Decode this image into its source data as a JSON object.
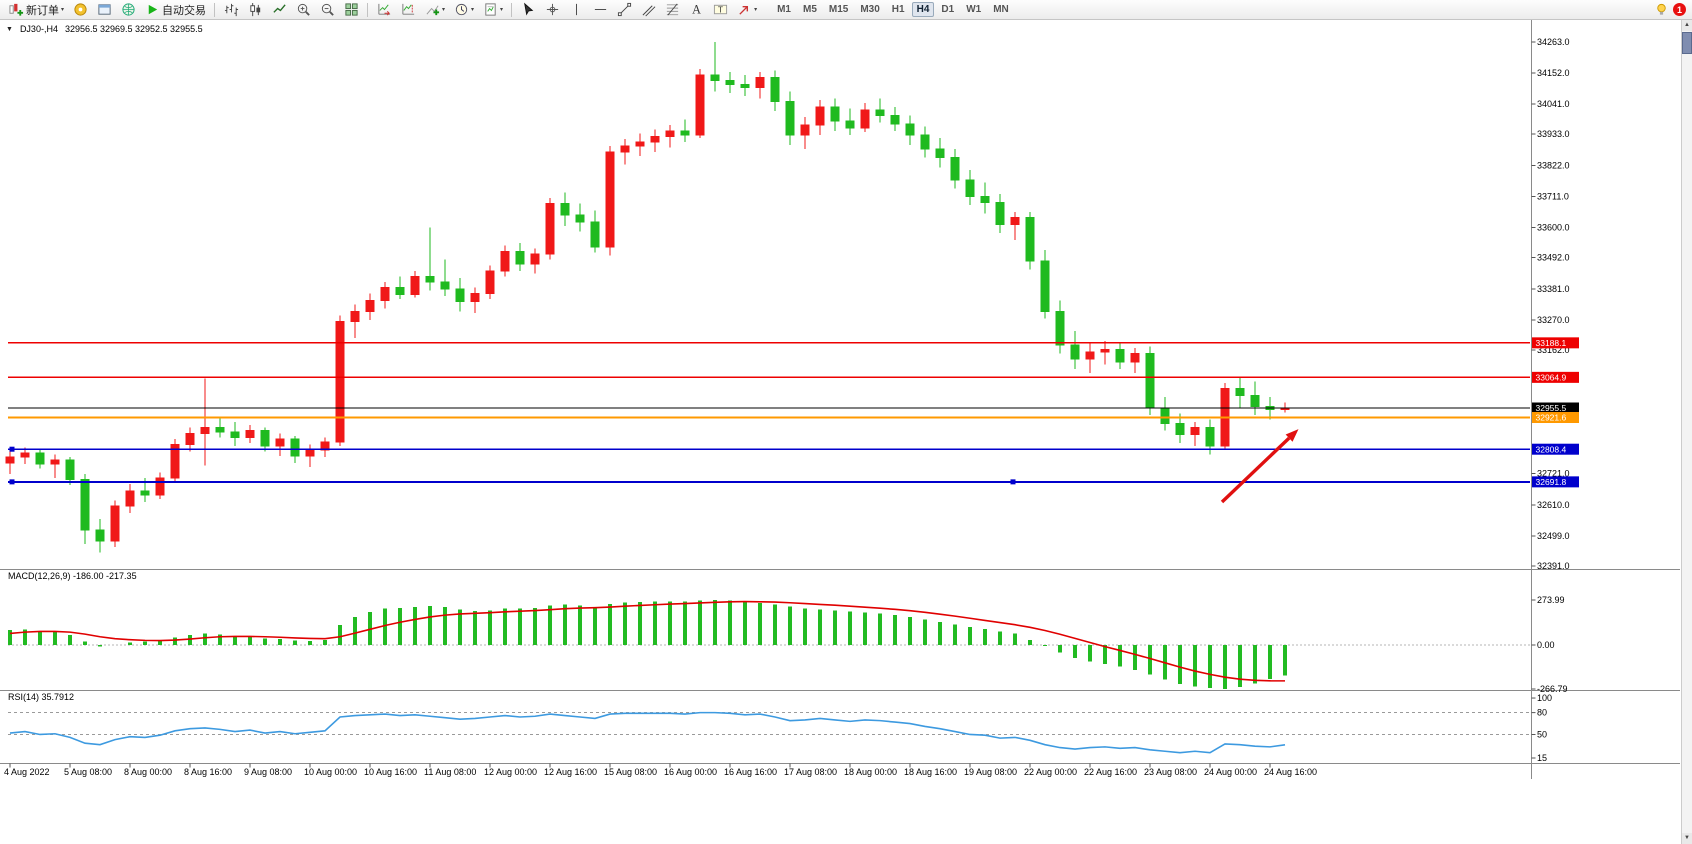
{
  "toolbar": {
    "buttons": [
      {
        "name": "new-order-button",
        "icon": "new-order-icon",
        "label": "新订单",
        "caret": true
      },
      {
        "name": "guide-button",
        "icon": "guide-icon"
      },
      {
        "name": "new-window-button",
        "icon": "window-icon"
      },
      {
        "name": "community-button",
        "icon": "web-icon"
      },
      {
        "name": "auto-trading-button",
        "icon": "autotrade-icon",
        "label": "自动交易"
      },
      {
        "sep": true
      },
      {
        "name": "bar-chart-button",
        "icon": "bars-icon"
      },
      {
        "name": "candlestick-chart-button",
        "icon": "candles-icon"
      },
      {
        "name": "line-chart-button",
        "icon": "line-icon"
      },
      {
        "name": "zoom-in-button",
        "icon": "zoomin-icon"
      },
      {
        "name": "zoom-out-button",
        "icon": "zoomout-icon"
      },
      {
        "name": "tile-windows-button",
        "icon": "tile-icon"
      },
      {
        "sep": true
      },
      {
        "name": "auto-scroll-button",
        "icon": "autoscroll-icon"
      },
      {
        "name": "chart-shift-button",
        "icon": "shift-icon"
      },
      {
        "name": "indicators-button",
        "icon": "indicators-icon",
        "caret": true
      },
      {
        "name": "periods-button",
        "icon": "periods-icon",
        "caret": true
      },
      {
        "name": "templates-button",
        "icon": "templates-icon",
        "caret": true
      },
      {
        "sep": true
      },
      {
        "name": "cursor-button",
        "icon": "cursor-icon"
      },
      {
        "name": "crosshair-button",
        "icon": "crosshair-icon"
      },
      {
        "name": "vertical-line-button",
        "icon": "vline-icon"
      },
      {
        "name": "horizontal-line-button",
        "icon": "hline-icon"
      },
      {
        "name": "trendline-button",
        "icon": "trendline-icon"
      },
      {
        "name": "channel-button",
        "icon": "channel-icon"
      },
      {
        "name": "fibonacci-button",
        "icon": "fibo-icon"
      },
      {
        "name": "text-button",
        "icon": "text-icon"
      },
      {
        "name": "label-button",
        "icon": "label-icon"
      },
      {
        "name": "arrows-button",
        "icon": "arrows-icon",
        "caret": true
      }
    ],
    "timeframes": [
      "M1",
      "M5",
      "M15",
      "M30",
      "H1",
      "H4",
      "D1",
      "W1",
      "MN"
    ],
    "active_timeframe": "H4",
    "notification_badge": "1"
  },
  "chart": {
    "symbol_period": "DJ30-,H4",
    "ohlc": "32956.5 32969.5 32952.5 32955.5"
  },
  "indicators": {
    "macd_label": "MACD(12,26,9) -186.00 -217.35",
    "rsi_label": "RSI(14) 35.7912"
  },
  "chart_data": {
    "type": "candlestick",
    "symbol": "DJ30-",
    "timeframe": "H4",
    "colors": {
      "up": "#f01818",
      "down": "#1fba1f",
      "macd_hist": "#22bb22",
      "macd_signal": "#e00000",
      "rsi_line": "#3d9ae0"
    },
    "y_axis_ticks": [
      "34263.0",
      "34152.0",
      "34041.0",
      "33933.0",
      "33822.0",
      "33711.0",
      "33600.0",
      "33492.0",
      "33381.0",
      "33270.0",
      "33162.0",
      "32721.0",
      "32610.0",
      "32499.0",
      "32391.0"
    ],
    "price_lines": [
      {
        "price": 33188.1,
        "label": "33188.1",
        "color": "#ee0000",
        "width": 1.6,
        "handles": []
      },
      {
        "price": 33064.9,
        "label": "33064.9",
        "color": "#ee0000",
        "width": 1.6,
        "handles": []
      },
      {
        "price": 32955.5,
        "label": "32955.5",
        "color": "#000000",
        "width": 1.2,
        "handles": []
      },
      {
        "price": 32921.6,
        "label": "32921.6",
        "color": "#ff9900",
        "width": 2,
        "handles": []
      },
      {
        "price": 32808.4,
        "label": "32808.4",
        "color": "#0000cc",
        "width": 1.8,
        "handles": [
          12
        ]
      },
      {
        "price": 32691.8,
        "label": "32691.8",
        "color": "#0000cc",
        "width": 1.8,
        "handles": [
          12,
          1013
        ]
      }
    ],
    "time_labels": [
      "4 Aug 2022",
      "5 Aug 08:00",
      "8 Aug 00:00",
      "8 Aug 16:00",
      "9 Aug 08:00",
      "10 Aug 00:00",
      "10 Aug 16:00",
      "11 Aug 08:00",
      "12 Aug 00:00",
      "12 Aug 16:00",
      "15 Aug 08:00",
      "16 Aug 00:00",
      "16 Aug 16:00",
      "17 Aug 08:00",
      "18 Aug 00:00",
      "18 Aug 16:00",
      "19 Aug 08:00",
      "22 Aug 00:00",
      "22 Aug 16:00",
      "23 Aug 08:00",
      "24 Aug 00:00",
      "24 Aug 16:00"
    ],
    "candles": [
      [
        32760,
        32800,
        32720,
        32780
      ],
      [
        32780,
        32815,
        32755,
        32795
      ],
      [
        32795,
        32805,
        32740,
        32755
      ],
      [
        32755,
        32790,
        32705,
        32770
      ],
      [
        32770,
        32780,
        32680,
        32700
      ],
      [
        32700,
        32720,
        32470,
        32520
      ],
      [
        32520,
        32560,
        32440,
        32480
      ],
      [
        32480,
        32625,
        32460,
        32605
      ],
      [
        32605,
        32685,
        32580,
        32660
      ],
      [
        32660,
        32705,
        32620,
        32645
      ],
      [
        32645,
        32725,
        32630,
        32705
      ],
      [
        32705,
        32845,
        32695,
        32825
      ],
      [
        32825,
        32885,
        32800,
        32865
      ],
      [
        32865,
        33060,
        32750,
        32885
      ],
      [
        32885,
        32925,
        32850,
        32870
      ],
      [
        32870,
        32905,
        32820,
        32850
      ],
      [
        32850,
        32895,
        32830,
        32875
      ],
      [
        32875,
        32885,
        32800,
        32820
      ],
      [
        32820,
        32865,
        32785,
        32845
      ],
      [
        32845,
        32855,
        32760,
        32785
      ],
      [
        32785,
        32825,
        32745,
        32805
      ],
      [
        32805,
        32850,
        32780,
        32835
      ],
      [
        32835,
        33285,
        32820,
        33265
      ],
      [
        33265,
        33325,
        33205,
        33300
      ],
      [
        33300,
        33365,
        33270,
        33340
      ],
      [
        33340,
        33405,
        33310,
        33385
      ],
      [
        33385,
        33425,
        33345,
        33360
      ],
      [
        33360,
        33445,
        33350,
        33425
      ],
      [
        33425,
        33600,
        33375,
        33405
      ],
      [
        33405,
        33485,
        33355,
        33380
      ],
      [
        33380,
        33420,
        33300,
        33335
      ],
      [
        33335,
        33385,
        33295,
        33365
      ],
      [
        33365,
        33465,
        33345,
        33445
      ],
      [
        33445,
        33535,
        33425,
        33515
      ],
      [
        33515,
        33545,
        33445,
        33470
      ],
      [
        33470,
        33525,
        33435,
        33505
      ],
      [
        33505,
        33705,
        33485,
        33685
      ],
      [
        33685,
        33725,
        33605,
        33645
      ],
      [
        33645,
        33685,
        33585,
        33620
      ],
      [
        33620,
        33660,
        33510,
        33530
      ],
      [
        33530,
        33890,
        33500,
        33870
      ],
      [
        33870,
        33915,
        33825,
        33890
      ],
      [
        33890,
        33935,
        33855,
        33905
      ],
      [
        33905,
        33950,
        33870,
        33925
      ],
      [
        33925,
        33965,
        33885,
        33945
      ],
      [
        33945,
        33985,
        33905,
        33930
      ],
      [
        33930,
        34165,
        33920,
        34145
      ],
      [
        34145,
        34263,
        34085,
        34125
      ],
      [
        34125,
        34155,
        34080,
        34110
      ],
      [
        34110,
        34145,
        34070,
        34100
      ],
      [
        34100,
        34155,
        34060,
        34135
      ],
      [
        34135,
        34160,
        34015,
        34050
      ],
      [
        34050,
        34085,
        33895,
        33930
      ],
      [
        33930,
        33995,
        33880,
        33965
      ],
      [
        33965,
        34055,
        33930,
        34030
      ],
      [
        34030,
        34060,
        33945,
        33980
      ],
      [
        33980,
        34025,
        33930,
        33955
      ],
      [
        33955,
        34045,
        33940,
        34020
      ],
      [
        34020,
        34060,
        33975,
        34000
      ],
      [
        34000,
        34030,
        33945,
        33970
      ],
      [
        33970,
        34000,
        33895,
        33930
      ],
      [
        33930,
        33960,
        33850,
        33880
      ],
      [
        33880,
        33920,
        33815,
        33850
      ],
      [
        33850,
        33880,
        33740,
        33770
      ],
      [
        33770,
        33805,
        33680,
        33710
      ],
      [
        33710,
        33760,
        33650,
        33690
      ],
      [
        33690,
        33720,
        33580,
        33610
      ],
      [
        33610,
        33655,
        33555,
        33635
      ],
      [
        33635,
        33655,
        33450,
        33480
      ],
      [
        33480,
        33520,
        33275,
        33300
      ],
      [
        33300,
        33340,
        33150,
        33180
      ],
      [
        33180,
        33230,
        33095,
        33130
      ],
      [
        33130,
        33185,
        33080,
        33155
      ],
      [
        33155,
        33195,
        33110,
        33165
      ],
      [
        33165,
        33185,
        33095,
        33120
      ],
      [
        33120,
        33170,
        33080,
        33150
      ],
      [
        33150,
        33175,
        32930,
        32955
      ],
      [
        32955,
        32995,
        32875,
        32900
      ],
      [
        32900,
        32935,
        32830,
        32860
      ],
      [
        32860,
        32905,
        32820,
        32885
      ],
      [
        32885,
        32915,
        32790,
        32820
      ],
      [
        32820,
        33045,
        32810,
        33025
      ],
      [
        33025,
        33065,
        32955,
        33000
      ],
      [
        33000,
        33050,
        32930,
        32960
      ],
      [
        32960,
        32995,
        32915,
        32950
      ],
      [
        32950,
        32975,
        32940,
        32955.5
      ]
    ],
    "macd": {
      "axis_labels": [
        "273.99",
        "0.00",
        "-266.79"
      ],
      "histogram": [
        90,
        95,
        85,
        80,
        60,
        20,
        -10,
        0,
        15,
        20,
        25,
        45,
        60,
        70,
        65,
        55,
        50,
        40,
        35,
        28,
        25,
        30,
        120,
        170,
        200,
        220,
        225,
        230,
        235,
        230,
        215,
        205,
        210,
        220,
        222,
        224,
        240,
        245,
        240,
        230,
        250,
        258,
        262,
        264,
        265,
        263,
        270,
        274,
        271,
        263,
        256,
        246,
        232,
        222,
        216,
        210,
        202,
        196,
        190,
        181,
        170,
        156,
        140,
        125,
        110,
        96,
        82,
        70,
        30,
        -5,
        -45,
        -80,
        -100,
        -115,
        -130,
        -150,
        -180,
        -210,
        -235,
        -250,
        -260,
        -266,
        -255,
        -232,
        -207,
        -186
      ],
      "signal": [
        70,
        78,
        82,
        82,
        78,
        66,
        50,
        38,
        32,
        28,
        27,
        30,
        36,
        44,
        50,
        52,
        52,
        50,
        47,
        43,
        40,
        38,
        50,
        72,
        95,
        118,
        138,
        155,
        170,
        181,
        188,
        192,
        196,
        201,
        205,
        209,
        214,
        220,
        224,
        226,
        230,
        235,
        240,
        244,
        248,
        251,
        255,
        259,
        262,
        263,
        262,
        260,
        256,
        251,
        246,
        241,
        235,
        229,
        223,
        216,
        208,
        198,
        187,
        175,
        162,
        149,
        136,
        123,
        107,
        88,
        65,
        40,
        15,
        -10,
        -33,
        -57,
        -82,
        -108,
        -134,
        -158,
        -178,
        -195,
        -207,
        -214,
        -217,
        -217.35
      ]
    },
    "rsi": {
      "axis_labels": [
        "100",
        "80",
        "50",
        "15"
      ],
      "levels": [
        80,
        50
      ],
      "series": [
        52,
        54,
        50,
        51,
        46,
        38,
        36,
        43,
        47,
        46,
        49,
        55,
        58,
        59,
        57,
        54,
        56,
        52,
        54,
        51,
        53,
        55,
        74,
        76,
        77,
        78,
        76,
        77,
        75,
        73,
        71,
        72,
        74,
        76,
        74,
        75,
        78,
        76,
        74,
        72,
        78,
        79,
        79,
        79,
        79,
        78,
        80,
        80,
        79,
        77,
        78,
        74,
        69,
        70,
        72,
        70,
        68,
        70,
        69,
        67,
        65,
        61,
        58,
        54,
        50,
        49,
        45,
        46,
        42,
        36,
        32,
        30,
        32,
        33,
        31,
        32,
        29,
        27,
        25,
        27,
        25,
        37,
        36,
        34,
        33,
        35.79
      ]
    },
    "arrow_annotation": {
      "from_bar": 80.8,
      "from_price": 32620,
      "to_bar": 85.9,
      "to_price": 32880,
      "color": "#e01010"
    }
  }
}
